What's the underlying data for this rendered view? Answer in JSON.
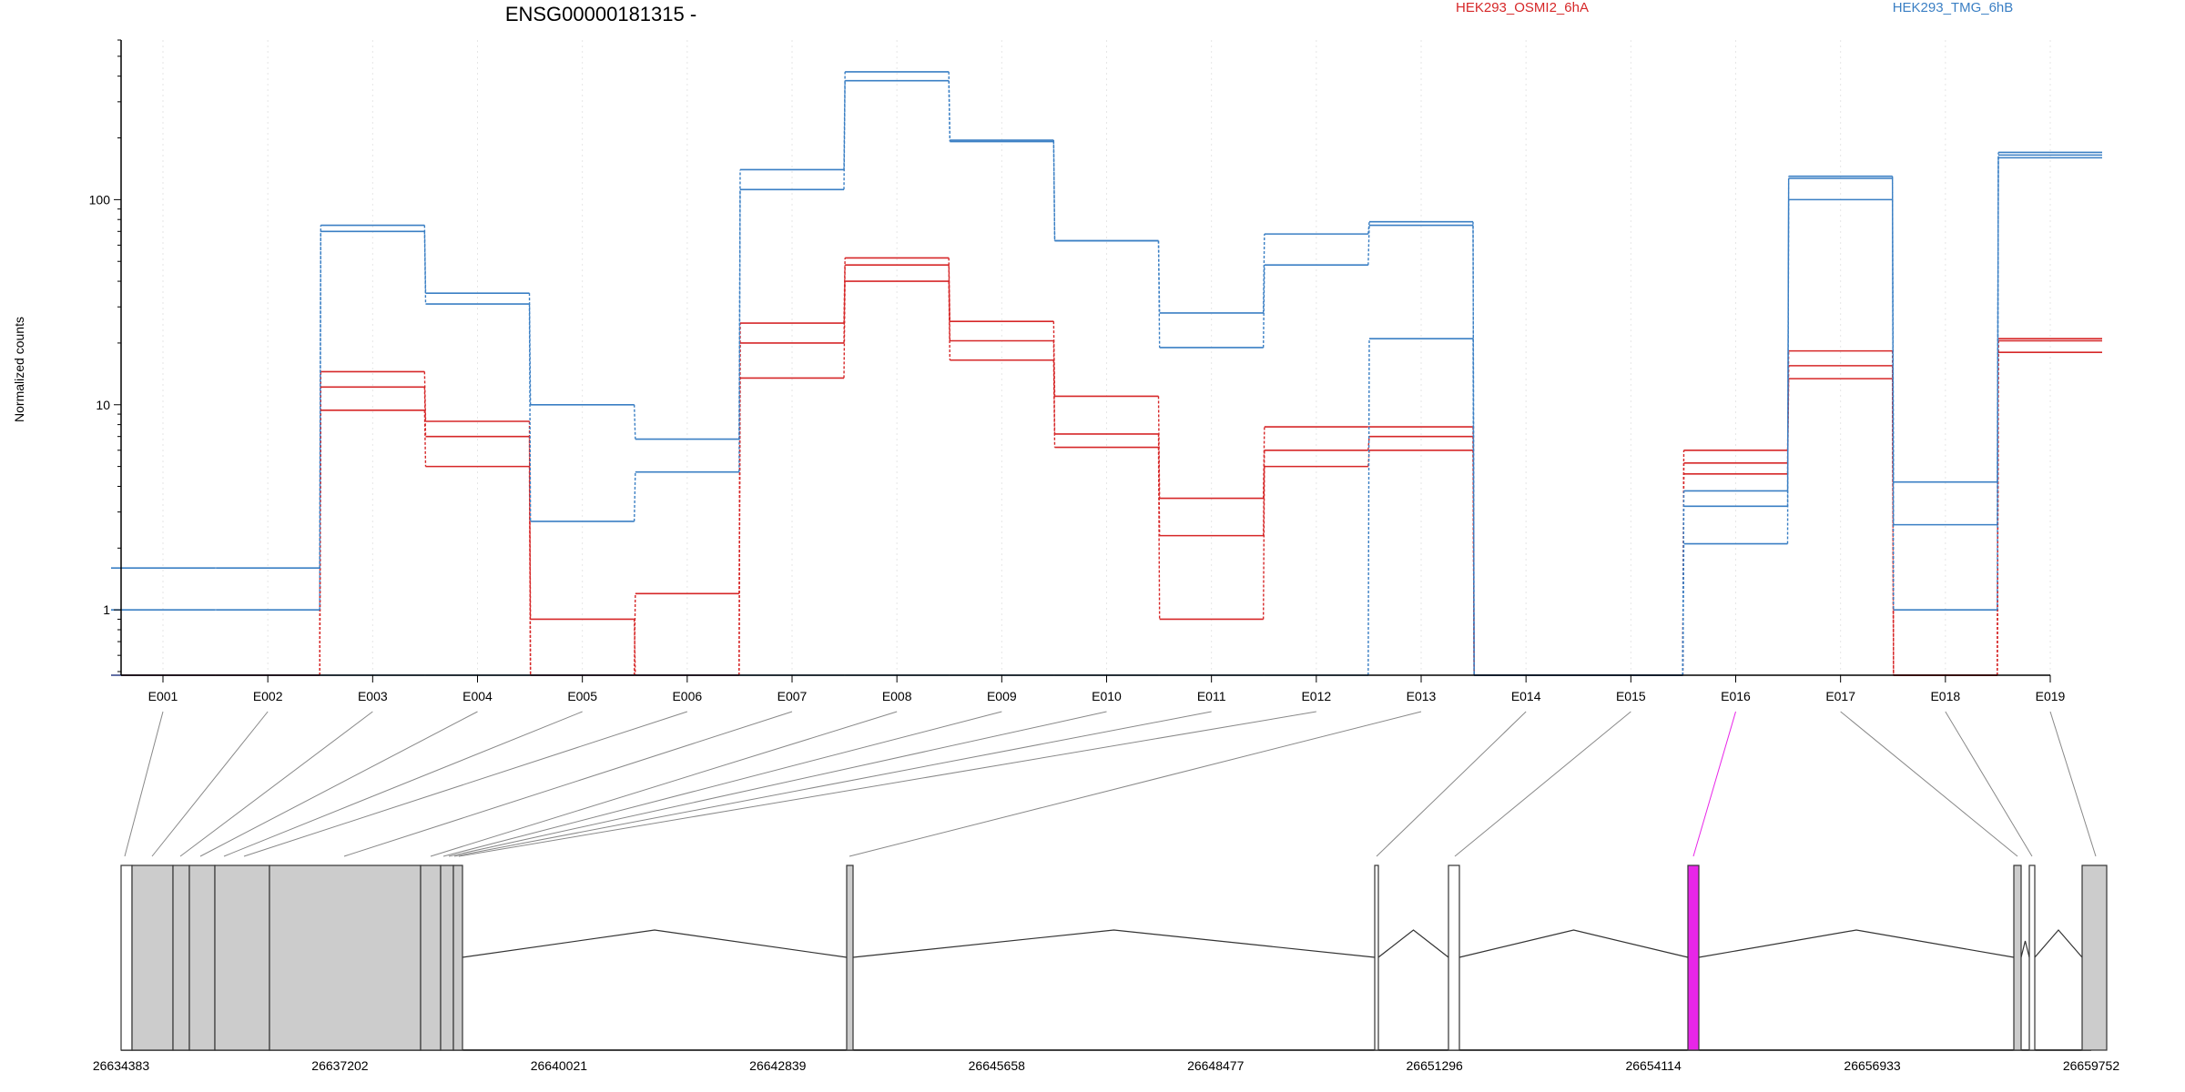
{
  "chart_data": {
    "type": "line",
    "title": "ENSG00000181315 -",
    "ylabel": "Normalized counts",
    "yscale": "log",
    "ylim": [
      0.48,
      600
    ],
    "y_ticks": [
      1,
      10,
      100
    ],
    "y_tick_labels": [
      "1",
      "10",
      "100"
    ],
    "categories": [
      "E001",
      "E002",
      "E003",
      "E004",
      "E005",
      "E006",
      "E007",
      "E008",
      "E009",
      "E010",
      "E011",
      "E012",
      "E013",
      "E014",
      "E015",
      "E016",
      "E017",
      "E018",
      "E019"
    ],
    "grid": "vertical dotted gridlines at exon positions",
    "legend": [
      {
        "label": "HEK293_OSMI2_6hA",
        "color": "#d62728",
        "placement": "top-center"
      },
      {
        "label": "HEK293_TMG_6hB",
        "color": "#3a7fc4",
        "placement": "top-right"
      }
    ],
    "series": [
      {
        "group": "HEK293_OSMI2_6hA",
        "color": "#d62728",
        "values": [
          0.48,
          0.48,
          14.5,
          8.3,
          0.48,
          0.48,
          25,
          52,
          25.5,
          11,
          3.5,
          7.8,
          7.8,
          0.48,
          0.48,
          6,
          18.3,
          0.48,
          21
        ]
      },
      {
        "group": "HEK293_OSMI2_6hA",
        "color": "#d62728",
        "values": [
          0.48,
          0.48,
          12.2,
          7,
          0.9,
          0.48,
          20,
          48,
          20.5,
          7.2,
          2.3,
          6,
          7,
          0.48,
          0.48,
          5.2,
          15.5,
          0.48,
          20.5
        ]
      },
      {
        "group": "HEK293_OSMI2_6hA",
        "color": "#d62728",
        "values": [
          0.48,
          0.48,
          9.4,
          5,
          0.48,
          1.2,
          13.5,
          40,
          16.5,
          6.2,
          0.9,
          5,
          6,
          0.48,
          0.48,
          4.6,
          13.4,
          0.48,
          18
        ]
      },
      {
        "group": "HEK293_TMG_6hB",
        "color": "#3a7fc4",
        "values": [
          1.6,
          1.6,
          75,
          35,
          10,
          6.8,
          140,
          420,
          195,
          63,
          28,
          68,
          78,
          0.48,
          0.48,
          3.8,
          130,
          4.2,
          170
        ]
      },
      {
        "group": "HEK293_TMG_6hB",
        "color": "#3a7fc4",
        "values": [
          1,
          1,
          70,
          31,
          2.7,
          4.7,
          112,
          380,
          192,
          63,
          19,
          48,
          75,
          0.48,
          0.48,
          3.2,
          100,
          2.6,
          160
        ]
      },
      {
        "group": "HEK293_TMG_6hB",
        "color": "#3a7fc4",
        "values": [
          0.48,
          0.48,
          0.48,
          0.48,
          0.48,
          0.48,
          0.48,
          0.48,
          0.48,
          0.48,
          0.48,
          0.48,
          21,
          0.48,
          0.48,
          2.1,
          127,
          1,
          165
        ]
      }
    ],
    "gene_model": {
      "coordinate_range": [
        26634383,
        26659752
      ],
      "x_tick_labels": [
        "26634383",
        "26637202",
        "26640021",
        "26642839",
        "26645658",
        "26648477",
        "26651296",
        "26654114",
        "26656933",
        "26659752"
      ],
      "highlight_color": "#e826e8",
      "highlighted_exon": "E016"
    }
  }
}
